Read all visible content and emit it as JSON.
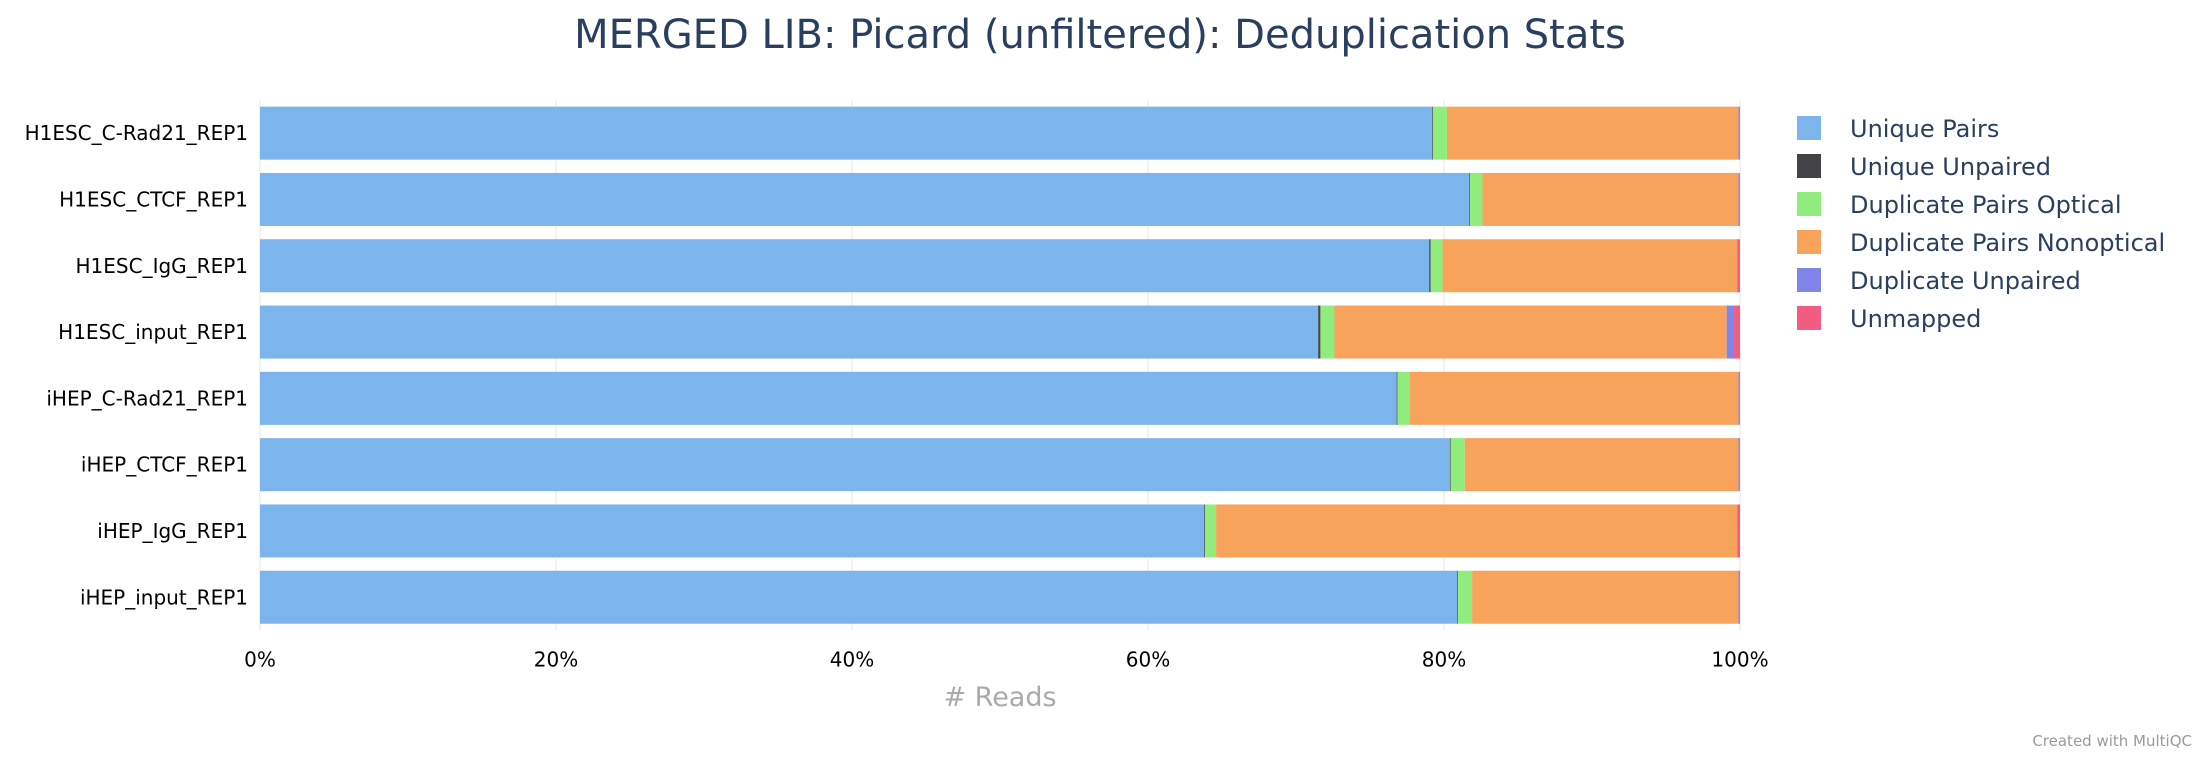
{
  "chart_data": {
    "type": "bar",
    "orientation": "horizontal",
    "stacked": true,
    "normalized_percent": true,
    "title": "MERGED LIB: Picard (unfiltered): Deduplication Stats",
    "xlabel": "# Reads",
    "ylabel": "",
    "xlim": [
      0,
      100
    ],
    "x_ticks": [
      "0%",
      "20%",
      "40%",
      "60%",
      "80%",
      "100%"
    ],
    "grid": true,
    "legend_position": "right",
    "categories": [
      "H1ESC_C-Rad21_REP1",
      "H1ESC_CTCF_REP1",
      "H1ESC_IgG_REP1",
      "H1ESC_input_REP1",
      "iHEP_C-Rad21_REP1",
      "iHEP_CTCF_REP1",
      "iHEP_IgG_REP1",
      "iHEP_input_REP1"
    ],
    "series": [
      {
        "name": "Unique Pairs",
        "color": "#7cb5ec",
        "values": [
          79.2,
          81.7,
          79.0,
          71.5,
          76.8,
          80.4,
          63.8,
          80.9
        ]
      },
      {
        "name": "Unique Unpaired",
        "color": "#434348",
        "values": [
          0.05,
          0.05,
          0.1,
          0.15,
          0.05,
          0.05,
          0.05,
          0.05
        ]
      },
      {
        "name": "Duplicate Pairs Optical",
        "color": "#90ed7d",
        "values": [
          0.95,
          0.85,
          0.8,
          0.95,
          0.85,
          0.95,
          0.75,
          0.95
        ]
      },
      {
        "name": "Duplicate Pairs Nonoptical",
        "color": "#f7a35c",
        "values": [
          19.7,
          17.3,
          19.9,
          26.5,
          22.2,
          18.5,
          35.2,
          18.0
        ]
      },
      {
        "name": "Duplicate Unpaired",
        "color": "#8085e9",
        "values": [
          0.05,
          0.05,
          0.05,
          0.5,
          0.05,
          0.05,
          0.05,
          0.05
        ]
      },
      {
        "name": "Unmapped",
        "color": "#f15c80",
        "values": [
          0.05,
          0.05,
          0.15,
          0.4,
          0.05,
          0.05,
          0.15,
          0.05
        ]
      }
    ]
  },
  "footer": {
    "credit": "Created with MultiQC"
  }
}
